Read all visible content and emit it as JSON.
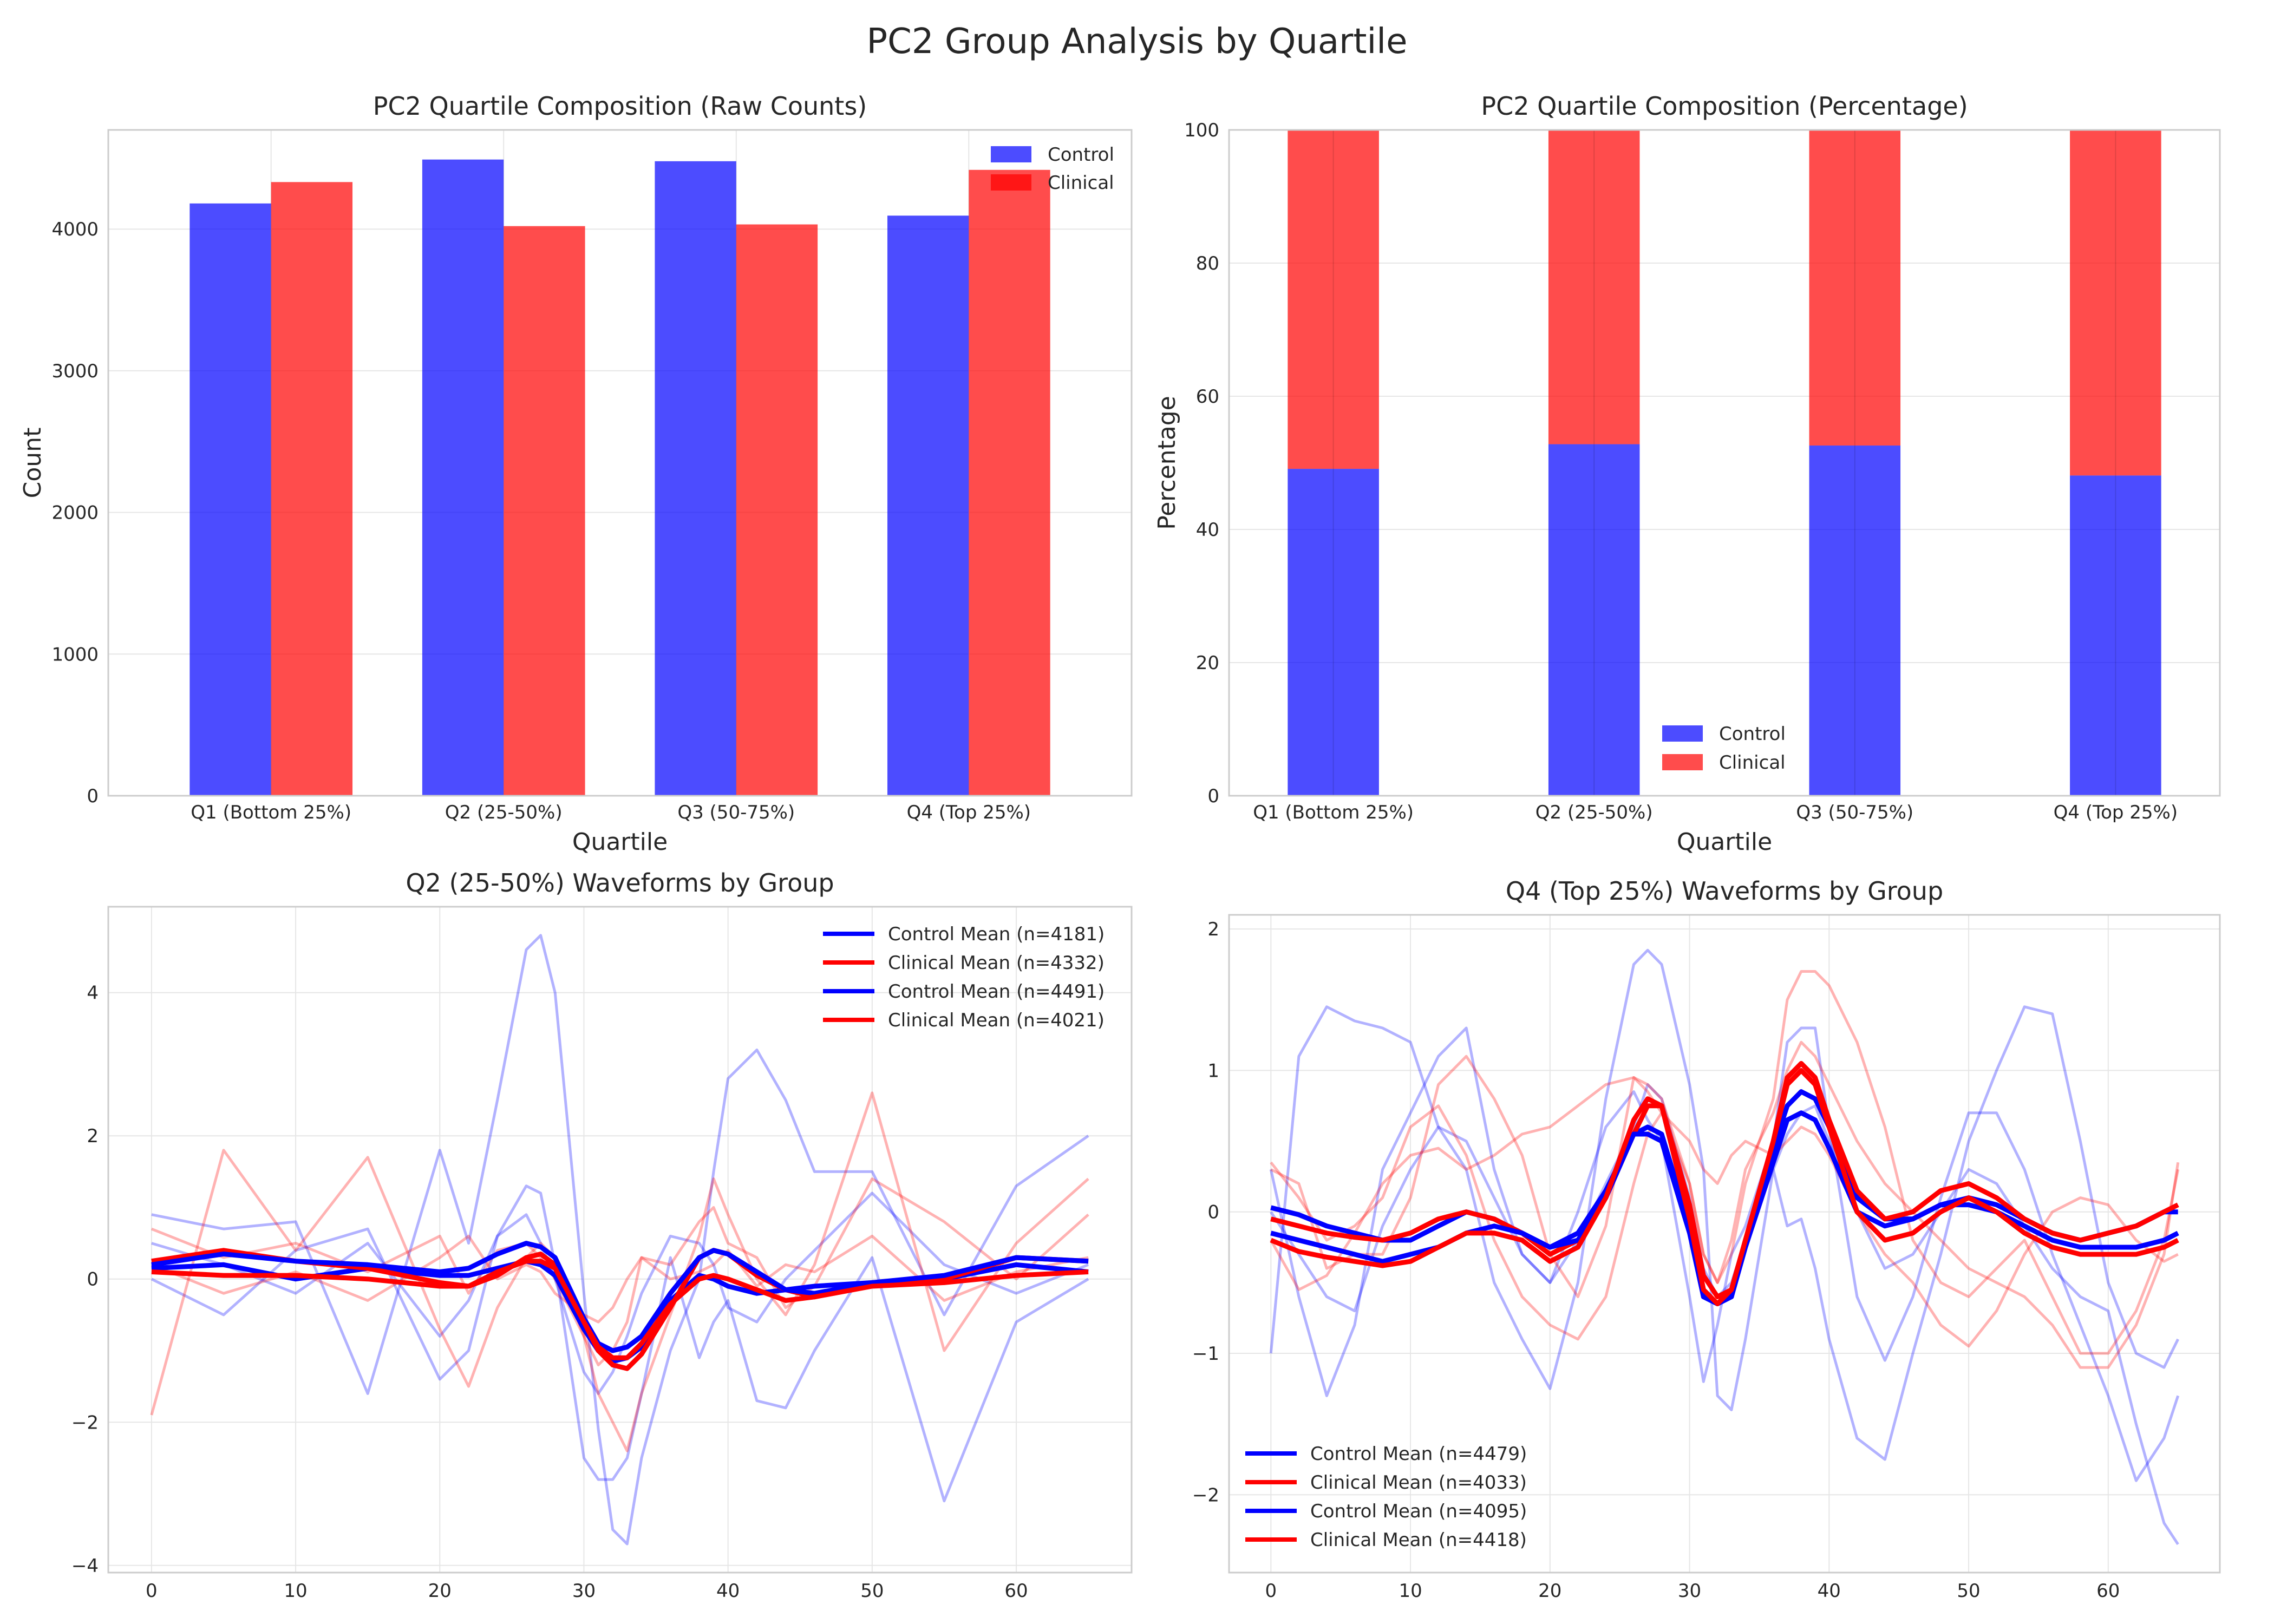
{
  "figure": {
    "title": "PC2 Group Analysis by Quartile"
  },
  "colors": {
    "control": "#0000ff",
    "clinical": "#ff0000",
    "grid": "#e6e6e6",
    "spine": "#cccccc",
    "text": "#262626"
  },
  "chart_data": [
    {
      "type": "bar",
      "title": "PC2 Quartile Composition (Raw Counts)",
      "xlabel": "Quartile",
      "ylabel": "Count",
      "categories": [
        "Q1 (Bottom 25%)",
        "Q2 (25-50%)",
        "Q3 (50-75%)",
        "Q4 (Top 25%)"
      ],
      "series": [
        {
          "name": "Control",
          "color": "#0000ff",
          "values": [
            4181,
            4491,
            4479,
            4095
          ]
        },
        {
          "name": "Clinical",
          "color": "#ff0000",
          "values": [
            4332,
            4021,
            4033,
            4418
          ]
        }
      ],
      "ylim": [
        0,
        4700
      ],
      "yticks": [
        0,
        1000,
        2000,
        3000,
        4000
      ],
      "legend": "top-right",
      "grid": true
    },
    {
      "type": "bar",
      "stacked": true,
      "title": "PC2 Quartile Composition (Percentage)",
      "xlabel": "Quartile",
      "ylabel": "Percentage",
      "categories": [
        "Q1 (Bottom 25%)",
        "Q2 (25-50%)",
        "Q3 (50-75%)",
        "Q4 (Top 25%)"
      ],
      "series": [
        {
          "name": "Control",
          "color": "#0000ff",
          "values": [
            49.1,
            52.8,
            52.6,
            48.1
          ]
        },
        {
          "name": "Clinical",
          "color": "#ff0000",
          "values": [
            50.9,
            47.2,
            47.4,
            51.9
          ]
        }
      ],
      "ylim": [
        0,
        100
      ],
      "yticks": [
        0,
        20,
        40,
        60,
        80,
        100
      ],
      "legend": "bottom-center",
      "grid": true
    },
    {
      "type": "line",
      "title": "Q2 (25-50%) Waveforms by Group",
      "xlim": [
        -3,
        68
      ],
      "ylim": [
        -4.1,
        5.2
      ],
      "xticks": [
        0,
        10,
        20,
        30,
        40,
        50,
        60
      ],
      "yticks": [
        -4,
        -2,
        0,
        2,
        4
      ],
      "legend": "top-right",
      "grid": true,
      "x": [
        0,
        5,
        10,
        15,
        20,
        22,
        24,
        26,
        27,
        28,
        30,
        31,
        32,
        33,
        34,
        36,
        38,
        39,
        40,
        42,
        44,
        46,
        50,
        55,
        60,
        65
      ],
      "samples": [
        {
          "group": "Control",
          "values": [
            0.9,
            0.7,
            0.8,
            -1.6,
            1.8,
            0.5,
            2.5,
            4.6,
            4.8,
            4.0,
            -0.2,
            -2.1,
            -3.5,
            -3.7,
            -2.5,
            -1.0,
            0.0,
            1.5,
            2.8,
            3.2,
            2.5,
            1.5,
            1.5,
            -0.5,
            1.3,
            2.0
          ]
        },
        {
          "group": "Control",
          "values": [
            0.0,
            -0.5,
            0.4,
            0.7,
            -1.4,
            -1.0,
            0.6,
            1.3,
            1.2,
            0.2,
            -2.5,
            -2.8,
            -2.8,
            -2.5,
            -1.6,
            0.3,
            -1.1,
            -0.6,
            -0.3,
            -1.7,
            -1.8,
            -1.0,
            0.3,
            -3.1,
            -0.6,
            0.0
          ]
        },
        {
          "group": "Control",
          "values": [
            0.5,
            0.2,
            -0.2,
            0.5,
            -0.8,
            -0.3,
            0.6,
            0.9,
            0.5,
            0.0,
            -1.3,
            -1.6,
            -1.3,
            -0.8,
            -0.2,
            0.6,
            0.5,
            0.2,
            -0.4,
            -0.6,
            0.0,
            0.4,
            1.2,
            0.2,
            -0.2,
            0.2
          ]
        },
        {
          "group": "Clinical",
          "values": [
            -1.9,
            1.8,
            0.4,
            1.7,
            -0.7,
            -1.5,
            -0.4,
            0.3,
            0.5,
            0.3,
            -0.8,
            -1.6,
            -2.0,
            -2.4,
            -1.6,
            -0.5,
            0.6,
            1.4,
            0.9,
            0.0,
            -0.5,
            0.2,
            2.6,
            -1.0,
            0.5,
            1.4
          ]
        },
        {
          "group": "Clinical",
          "values": [
            0.7,
            0.3,
            0.5,
            0.1,
            0.6,
            -0.2,
            0.4,
            0.5,
            0.3,
            0.0,
            -0.8,
            -1.2,
            -1.0,
            -0.6,
            0.3,
            0.2,
            0.8,
            1.0,
            0.5,
            0.3,
            -0.4,
            -0.1,
            1.4,
            0.8,
            0.0,
            0.9
          ]
        },
        {
          "group": "Clinical",
          "values": [
            0.2,
            -0.2,
            0.1,
            -0.3,
            0.3,
            0.6,
            0.0,
            0.2,
            0.1,
            -0.2,
            -0.5,
            -0.6,
            -0.4,
            0.0,
            0.3,
            0.0,
            0.1,
            0.2,
            0.4,
            -0.1,
            0.2,
            0.1,
            0.6,
            -0.3,
            0.1,
            0.3
          ]
        }
      ],
      "series": [
        {
          "name": "Control Mean (n=4181)",
          "color": "#0000ff",
          "values": [
            0.15,
            0.2,
            0.0,
            0.15,
            0.05,
            0.05,
            0.15,
            0.25,
            0.2,
            0.05,
            -0.7,
            -1.0,
            -1.15,
            -1.1,
            -0.95,
            -0.3,
            0.05,
            0.0,
            -0.1,
            -0.2,
            -0.15,
            -0.1,
            -0.05,
            0.0,
            0.2,
            0.1
          ]
        },
        {
          "name": "Clinical Mean (n=4332)",
          "color": "#ff0000",
          "values": [
            0.25,
            0.4,
            0.25,
            0.15,
            -0.05,
            -0.1,
            0.05,
            0.3,
            0.35,
            0.2,
            -0.6,
            -1.0,
            -1.2,
            -1.25,
            -1.05,
            -0.4,
            0.3,
            0.4,
            0.35,
            0.05,
            -0.15,
            -0.25,
            -0.05,
            0.0,
            0.3,
            0.25
          ]
        },
        {
          "name": "Control Mean (n=4491)",
          "color": "#0000ff",
          "values": [
            0.2,
            0.35,
            0.25,
            0.2,
            0.1,
            0.15,
            0.35,
            0.5,
            0.45,
            0.3,
            -0.55,
            -0.9,
            -1.0,
            -0.95,
            -0.8,
            -0.2,
            0.3,
            0.4,
            0.35,
            0.1,
            -0.15,
            -0.2,
            -0.05,
            0.05,
            0.3,
            0.25
          ]
        },
        {
          "name": "Clinical Mean (n=4021)",
          "color": "#ff0000",
          "values": [
            0.1,
            0.05,
            0.05,
            0.0,
            -0.1,
            -0.1,
            0.1,
            0.25,
            0.25,
            0.15,
            -0.6,
            -0.95,
            -1.1,
            -1.1,
            -0.9,
            -0.35,
            0.0,
            0.05,
            0.0,
            -0.15,
            -0.3,
            -0.25,
            -0.1,
            -0.05,
            0.05,
            0.1
          ]
        }
      ]
    },
    {
      "type": "line",
      "title": "Q4 (Top 25%) Waveforms by Group",
      "xlim": [
        -3,
        68
      ],
      "ylim": [
        -2.55,
        2.1
      ],
      "xticks": [
        0,
        10,
        20,
        30,
        40,
        50,
        60
      ],
      "yticks": [
        -2,
        -1,
        0,
        1,
        2
      ],
      "legend": "bottom-left",
      "grid": true,
      "x": [
        0,
        2,
        4,
        6,
        8,
        10,
        12,
        14,
        16,
        18,
        20,
        22,
        24,
        26,
        27,
        28,
        30,
        31,
        32,
        33,
        34,
        36,
        37,
        38,
        39,
        40,
        42,
        44,
        46,
        48,
        50,
        52,
        54,
        56,
        58,
        60,
        62,
        64,
        65
      ],
      "samples": [
        {
          "group": "Control",
          "values": [
            -1.0,
            1.1,
            1.45,
            1.35,
            1.3,
            1.2,
            0.6,
            0.3,
            -0.5,
            -0.9,
            -1.25,
            -0.5,
            0.8,
            1.75,
            1.85,
            1.75,
            0.9,
            0.3,
            -1.3,
            -1.4,
            -0.9,
            0.3,
            -0.1,
            -0.05,
            -0.4,
            -0.9,
            -1.6,
            -1.75,
            -1.0,
            -0.3,
            0.5,
            1.0,
            1.45,
            1.4,
            0.5,
            -0.5,
            -1.0,
            -1.1,
            -0.9
          ]
        },
        {
          "group": "Control",
          "values": [
            0.3,
            -0.6,
            -1.3,
            -0.8,
            0.3,
            0.7,
            1.1,
            1.3,
            0.3,
            -0.3,
            -0.5,
            0.0,
            0.6,
            0.85,
            0.65,
            0.5,
            -0.6,
            -1.2,
            -0.8,
            -0.3,
            -0.1,
            0.5,
            1.2,
            1.3,
            1.3,
            0.6,
            -0.6,
            -1.05,
            -0.6,
            0.1,
            0.7,
            0.7,
            0.3,
            -0.3,
            -0.8,
            -1.3,
            -1.9,
            -1.6,
            -1.3
          ]
        },
        {
          "group": "Control",
          "values": [
            0.0,
            -0.3,
            -0.6,
            -0.7,
            -0.1,
            0.3,
            0.6,
            0.5,
            0.1,
            -0.3,
            -0.5,
            -0.2,
            0.2,
            0.6,
            0.9,
            0.8,
            0.1,
            -0.4,
            -0.6,
            -0.5,
            -0.2,
            0.3,
            0.55,
            0.7,
            0.75,
            0.5,
            0.0,
            -0.4,
            -0.3,
            0.0,
            0.3,
            0.2,
            -0.1,
            -0.4,
            -0.6,
            -0.7,
            -1.5,
            -2.2,
            -2.35
          ]
        },
        {
          "group": "Clinical",
          "values": [
            0.3,
            0.2,
            -0.4,
            -0.3,
            -0.3,
            0.1,
            0.9,
            1.1,
            0.8,
            0.4,
            -0.3,
            -0.6,
            -0.1,
            0.95,
            0.9,
            0.8,
            0.2,
            -0.3,
            -0.5,
            -0.3,
            0.2,
            0.8,
            1.5,
            1.7,
            1.7,
            1.6,
            1.2,
            0.6,
            -0.2,
            -0.5,
            -0.6,
            -0.4,
            -0.2,
            -0.6,
            -1.0,
            -1.0,
            -0.7,
            -0.2,
            0.3
          ]
        },
        {
          "group": "Clinical",
          "values": [
            -0.2,
            -0.55,
            -0.45,
            -0.15,
            0.2,
            0.4,
            0.45,
            0.3,
            0.4,
            0.55,
            0.6,
            0.75,
            0.9,
            0.95,
            0.85,
            0.7,
            0.2,
            -0.3,
            -0.5,
            -0.2,
            0.3,
            0.7,
            1.0,
            1.2,
            1.1,
            0.9,
            0.5,
            0.2,
            0.0,
            -0.2,
            -0.4,
            -0.5,
            -0.6,
            -0.8,
            -1.1,
            -1.1,
            -0.8,
            -0.3,
            0.35
          ]
        },
        {
          "group": "Clinical",
          "values": [
            0.35,
            0.1,
            -0.2,
            -0.1,
            0.1,
            0.6,
            0.75,
            0.4,
            -0.2,
            -0.6,
            -0.8,
            -0.9,
            -0.6,
            0.2,
            0.55,
            0.7,
            0.5,
            0.3,
            0.2,
            0.4,
            0.5,
            0.4,
            0.5,
            0.6,
            0.55,
            0.4,
            0.0,
            -0.3,
            -0.5,
            -0.8,
            -0.95,
            -0.7,
            -0.3,
            0.0,
            0.1,
            0.05,
            -0.2,
            -0.35,
            -0.3
          ]
        }
      ],
      "series": [
        {
          "name": "Control Mean (n=4479)",
          "color": "#0000ff",
          "values": [
            0.03,
            -0.02,
            -0.1,
            -0.15,
            -0.2,
            -0.2,
            -0.1,
            0.0,
            -0.05,
            -0.15,
            -0.25,
            -0.15,
            0.15,
            0.55,
            0.6,
            0.55,
            -0.1,
            -0.6,
            -0.65,
            -0.6,
            -0.2,
            0.45,
            0.75,
            0.85,
            0.8,
            0.6,
            0.1,
            -0.05,
            -0.05,
            0.05,
            0.1,
            0.05,
            -0.05,
            -0.15,
            -0.2,
            -0.15,
            -0.1,
            0.0,
            0.0
          ]
        },
        {
          "name": "Clinical Mean (n=4033)",
          "color": "#ff0000",
          "values": [
            -0.05,
            -0.1,
            -0.15,
            -0.18,
            -0.2,
            -0.15,
            -0.05,
            0.0,
            -0.05,
            -0.15,
            -0.3,
            -0.2,
            0.1,
            0.55,
            0.75,
            0.75,
            0.05,
            -0.45,
            -0.6,
            -0.55,
            -0.2,
            0.5,
            0.95,
            1.05,
            0.95,
            0.65,
            0.15,
            -0.05,
            0.0,
            0.15,
            0.2,
            0.1,
            -0.05,
            -0.15,
            -0.2,
            -0.15,
            -0.1,
            0.0,
            0.05
          ]
        },
        {
          "name": "Control Mean (n=4095)",
          "color": "#0000ff",
          "values": [
            -0.15,
            -0.2,
            -0.25,
            -0.3,
            -0.35,
            -0.3,
            -0.25,
            -0.15,
            -0.1,
            -0.15,
            -0.25,
            -0.2,
            0.1,
            0.55,
            0.55,
            0.5,
            -0.15,
            -0.6,
            -0.65,
            -0.6,
            -0.25,
            0.35,
            0.65,
            0.7,
            0.65,
            0.45,
            0.0,
            -0.1,
            -0.05,
            0.05,
            0.05,
            0.0,
            -0.1,
            -0.2,
            -0.25,
            -0.25,
            -0.25,
            -0.2,
            -0.15
          ]
        },
        {
          "name": "Clinical Mean (n=4418)",
          "color": "#ff0000",
          "values": [
            -0.2,
            -0.28,
            -0.32,
            -0.35,
            -0.38,
            -0.35,
            -0.25,
            -0.15,
            -0.15,
            -0.2,
            -0.35,
            -0.25,
            0.1,
            0.65,
            0.8,
            0.75,
            -0.05,
            -0.55,
            -0.65,
            -0.55,
            -0.2,
            0.5,
            0.9,
            1.0,
            0.9,
            0.6,
            0.0,
            -0.2,
            -0.15,
            0.0,
            0.1,
            0.0,
            -0.15,
            -0.25,
            -0.3,
            -0.3,
            -0.3,
            -0.25,
            -0.2
          ]
        }
      ]
    }
  ]
}
